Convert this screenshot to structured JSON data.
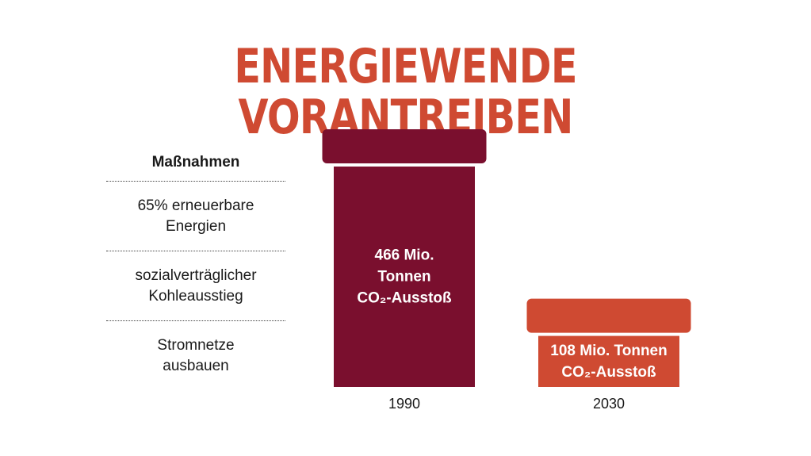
{
  "chart_data": {
    "type": "bar",
    "title": "ENERGIEWENDE VORANTREIBEN",
    "categories": [
      "1990",
      "2030"
    ],
    "values": [
      466,
      108
    ],
    "unit": "Mio. Tonnen CO₂-Ausstoß",
    "data_labels": [
      [
        "466 Mio.",
        "Tonnen",
        "CO₂-Ausstoß"
      ],
      [
        "108 Mio. Tonnen",
        "CO₂-Ausstoß"
      ]
    ],
    "colors": [
      "#7a0f2e",
      "#cf4a32"
    ],
    "xlabel": "",
    "ylabel": "",
    "grid": false,
    "legend": "none"
  },
  "measures": {
    "heading": "Maßnahmen",
    "items": [
      [
        "65% erneuerbare",
        "Energien"
      ],
      [
        "sozialverträglicher",
        "Kohleausstieg"
      ],
      [
        "Stromnetze",
        "ausbauen"
      ]
    ]
  }
}
